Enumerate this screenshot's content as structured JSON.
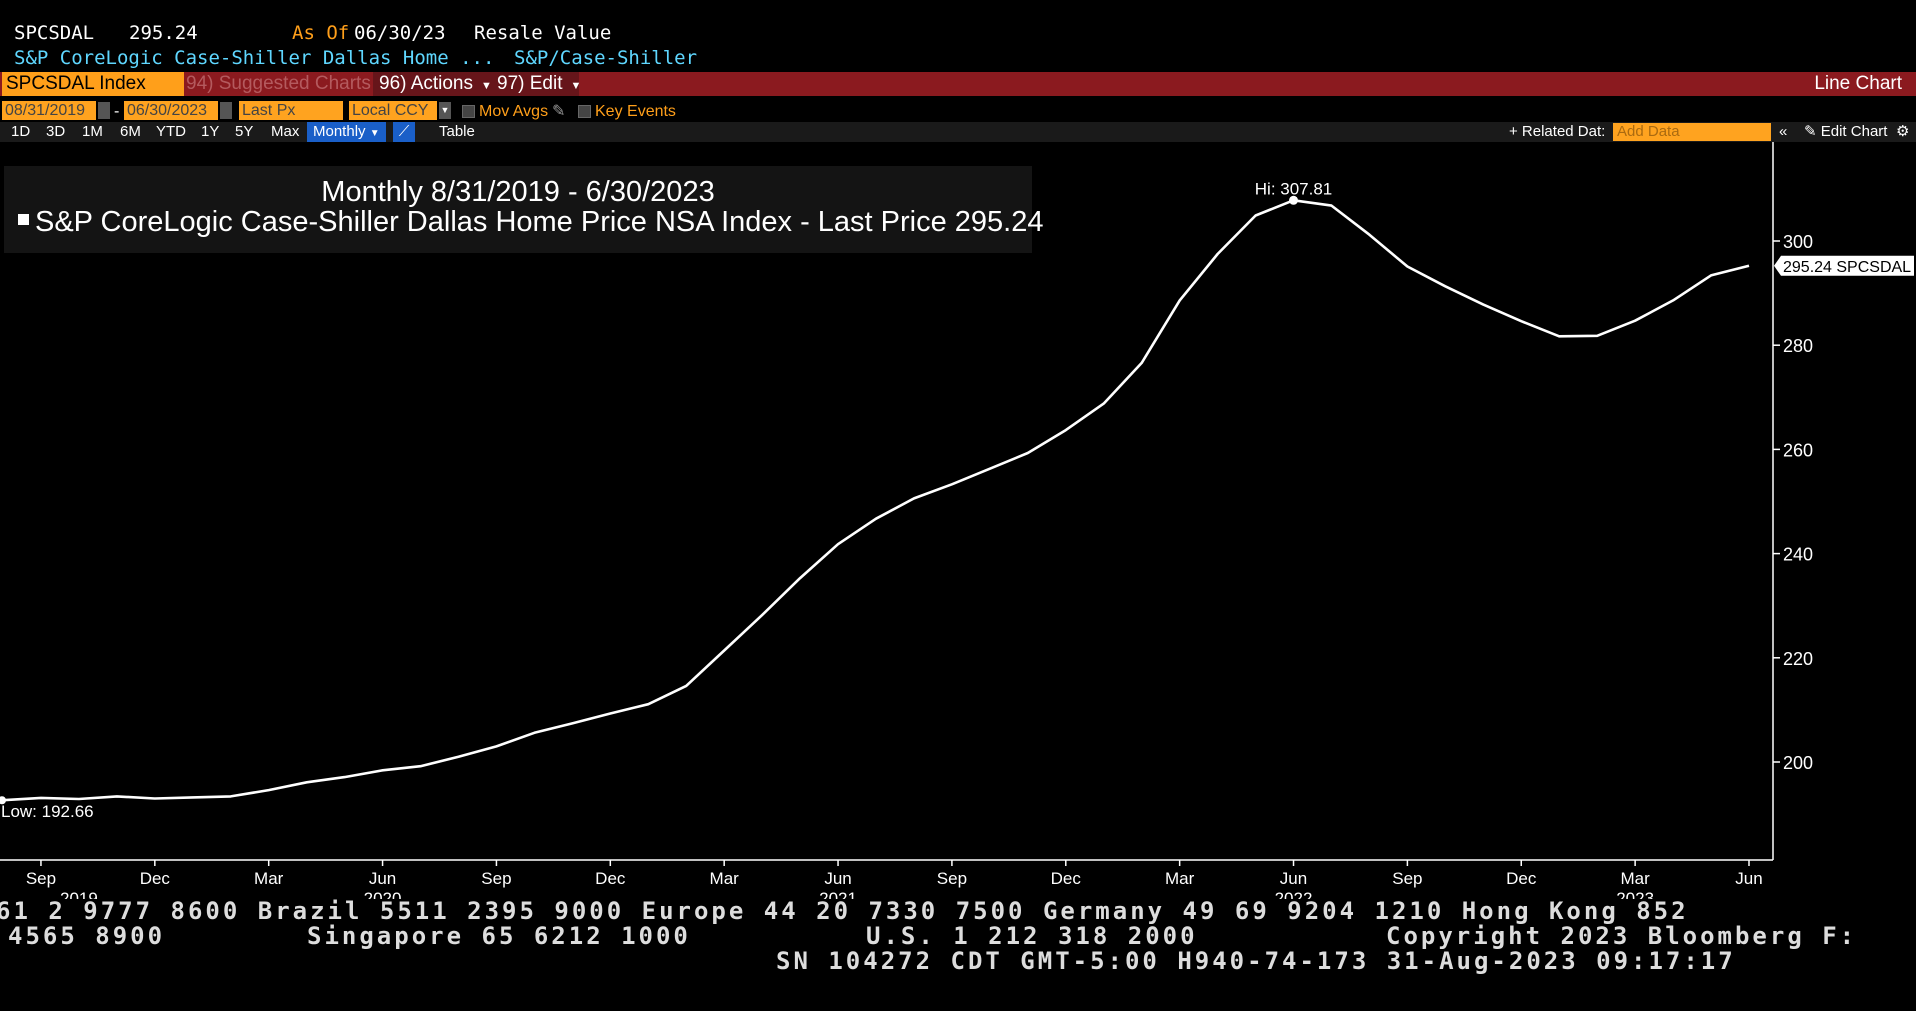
{
  "header": {
    "ticker": "SPCSDAL",
    "price": "295.24",
    "as_of_label": "As Of",
    "as_of_date": "06/30/23",
    "field": "Resale Value",
    "description": "S&P CoreLogic Case-Shiller Dallas Home ...",
    "source": "S&P/Case-Shiller"
  },
  "toolbar": {
    "security": "SPCSDAL Index",
    "suggested": "94) Suggested Charts",
    "actions": "96) Actions",
    "edit": "97) Edit",
    "chart_type": "Line Chart"
  },
  "controls": {
    "start_date": "08/31/2019",
    "end_date": "06/30/2023",
    "dash": "-",
    "price_field": "Last Px",
    "currency": "Local CCY",
    "mov_avgs": "Mov Avgs",
    "key_events": "Key Events"
  },
  "periods": [
    "1D",
    "3D",
    "1M",
    "6M",
    "YTD",
    "1Y",
    "5Y",
    "Max"
  ],
  "frequency": "Monthly",
  "table_label": "Table",
  "related_data": "+ Related Dat:",
  "add_data_placeholder": "Add Data",
  "edit_chart": "Edit Chart",
  "legend": {
    "title": "Monthly 8/31/2019 - 6/30/2023",
    "series": "S&P CoreLogic Case-Shiller Dallas Home Price NSA Index - Last Price",
    "last": "295.24"
  },
  "chart_data": {
    "type": "line",
    "x_start": "2019-08",
    "x_end": "2023-06",
    "series": [
      {
        "name": "S&P CoreLogic Case-Shiller Dallas Home Price NSA Index - Last Price",
        "color": "#ffffff",
        "x": [
          "2019-08",
          "2019-09",
          "2019-10",
          "2019-11",
          "2019-12",
          "2020-01",
          "2020-02",
          "2020-03",
          "2020-04",
          "2020-05",
          "2020-06",
          "2020-07",
          "2020-08",
          "2020-09",
          "2020-10",
          "2020-11",
          "2020-12",
          "2021-01",
          "2021-02",
          "2021-03",
          "2021-04",
          "2021-05",
          "2021-06",
          "2021-07",
          "2021-08",
          "2021-09",
          "2021-10",
          "2021-11",
          "2021-12",
          "2022-01",
          "2022-02",
          "2022-03",
          "2022-04",
          "2022-05",
          "2022-06",
          "2022-07",
          "2022-08",
          "2022-09",
          "2022-10",
          "2022-11",
          "2022-12",
          "2023-01",
          "2023-02",
          "2023-03",
          "2023-04",
          "2023-05",
          "2023-06"
        ],
        "values": [
          192.66,
          193.1,
          192.9,
          193.4,
          193.0,
          193.2,
          193.4,
          194.6,
          196.1,
          197.1,
          198.4,
          199.2,
          201.0,
          203.0,
          205.6,
          207.4,
          209.3,
          211.1,
          214.6,
          221.4,
          228.2,
          235.3,
          241.8,
          246.7,
          250.6,
          253.3,
          256.3,
          259.3,
          263.7,
          268.8,
          276.6,
          288.6,
          297.5,
          304.9,
          307.81,
          306.8,
          301.2,
          295.1,
          291.3,
          287.8,
          284.6,
          281.7,
          281.8,
          284.7,
          288.6,
          293.4,
          295.24
        ]
      }
    ],
    "ylim": [
      182,
      315
    ],
    "yticks": [
      200,
      220,
      240,
      260,
      280,
      300
    ],
    "xticks": [
      {
        "x": "2019-09",
        "label": "Sep"
      },
      {
        "x": "2019-12",
        "label": "Dec"
      },
      {
        "x": "2020-03",
        "label": "Mar"
      },
      {
        "x": "2020-06",
        "label": "Jun"
      },
      {
        "x": "2020-09",
        "label": "Sep"
      },
      {
        "x": "2020-12",
        "label": "Dec"
      },
      {
        "x": "2021-03",
        "label": "Mar"
      },
      {
        "x": "2021-06",
        "label": "Jun"
      },
      {
        "x": "2021-09",
        "label": "Sep"
      },
      {
        "x": "2021-12",
        "label": "Dec"
      },
      {
        "x": "2022-03",
        "label": "Mar"
      },
      {
        "x": "2022-06",
        "label": "Jun"
      },
      {
        "x": "2022-09",
        "label": "Sep"
      },
      {
        "x": "2022-12",
        "label": "Dec"
      },
      {
        "x": "2023-03",
        "label": "Mar"
      },
      {
        "x": "2023-06",
        "label": "Jun"
      }
    ],
    "year_labels": [
      {
        "x": "2019-10",
        "label": "2019"
      },
      {
        "x": "2020-06",
        "label": "2020"
      },
      {
        "x": "2021-06",
        "label": "2021"
      },
      {
        "x": "2022-06",
        "label": "2022"
      },
      {
        "x": "2023-03",
        "label": "2023"
      }
    ],
    "annotations": [
      {
        "x": "2022-06",
        "y": 307.81,
        "text": "Hi: 307.81"
      },
      {
        "x": "2019-08",
        "y": 192.66,
        "text": "Low: 192.66"
      }
    ],
    "last_label": "295.24 SPCSDAL",
    "grid": false,
    "y_axis_side": "right"
  },
  "footer": {
    "line1": "61 2 9777 8600 Brazil 5511 2395 9000 Europe 44 20 7330 7500 Germany 49 69 9204 1210 Hong Kong 852",
    "line2a": "4565 8900",
    "line2b": "Singapore 65 6212 1000",
    "line2c": "U.S. 1 212 318 2000",
    "line2d": "Copyright 2023 Bloomberg F:",
    "line3": "SN 104272 CDT  GMT-5:00 H940-74-173 31-Aug-2023 09:17:17"
  }
}
